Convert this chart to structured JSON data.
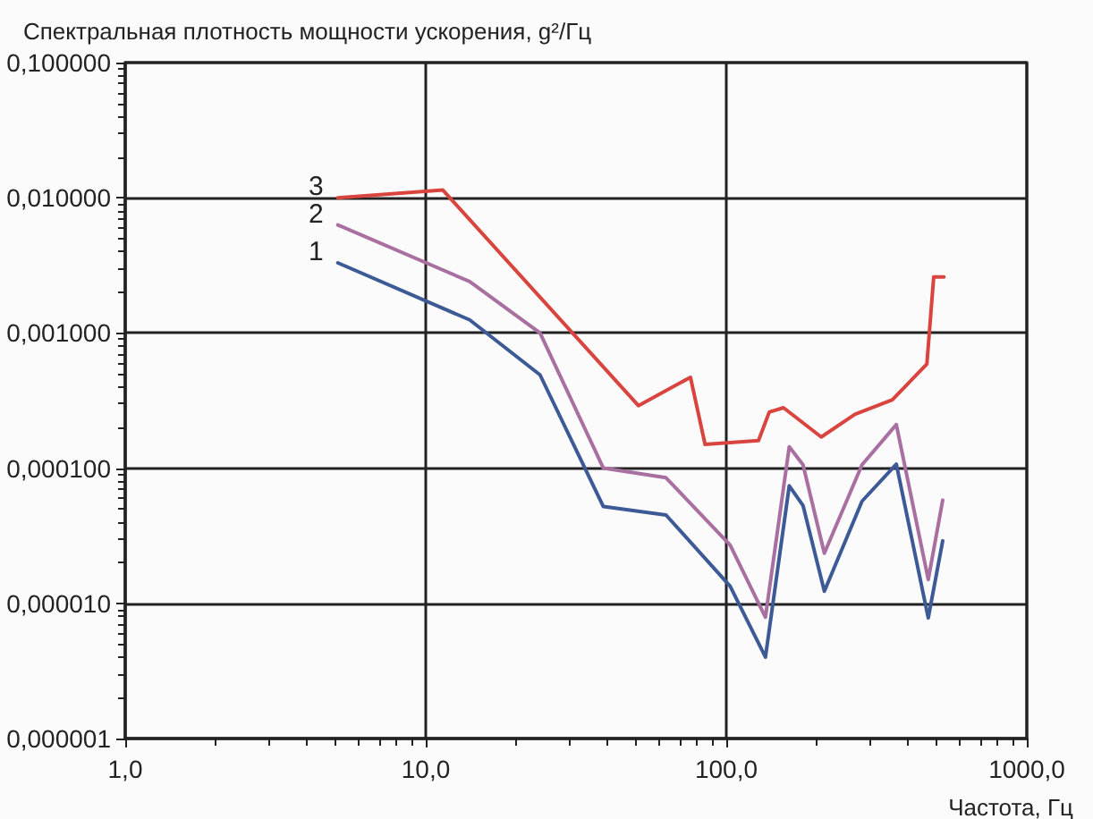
{
  "chart_data": {
    "type": "line",
    "ylabel": "Спектральная плотность мощности ускорения, g²/Гц",
    "xlabel": "Частота, Гц",
    "log": "xy",
    "grid": true,
    "legend": false,
    "marker": "none",
    "line_style": "solid",
    "xlim": [
      1,
      1000
    ],
    "ylim": [
      1e-06,
      0.1
    ],
    "xticks": [
      {
        "value": 1,
        "label": "1,0"
      },
      {
        "value": 10,
        "label": "10,0"
      },
      {
        "value": 100,
        "label": "100,0"
      },
      {
        "value": 1000,
        "label": "1000,0"
      }
    ],
    "yticks": [
      {
        "value": 1e-06,
        "label": "0,000001"
      },
      {
        "value": 1e-05,
        "label": "0,000010"
      },
      {
        "value": 0.0001,
        "label": "0,000100"
      },
      {
        "value": 0.001,
        "label": "0,001000"
      },
      {
        "value": 0.01,
        "label": "0,010000"
      },
      {
        "value": 0.1,
        "label": "0,100000"
      }
    ],
    "series": [
      {
        "name": "1",
        "color": "#3d5a96",
        "x": [
          5.1,
          14,
          24,
          39,
          63,
          103,
          135,
          162,
          180,
          212,
          283,
          368,
          470,
          525
        ],
        "values": [
          0.0033,
          0.00125,
          0.00049,
          5.2e-05,
          4.5e-05,
          1.34e-05,
          4e-06,
          7.4e-05,
          5.3e-05,
          1.23e-05,
          5.7e-05,
          0.000107,
          7.8e-06,
          2.9e-05
        ]
      },
      {
        "name": "2",
        "color": "#a86fa0",
        "x": [
          5.1,
          14,
          24,
          39,
          63,
          103,
          135,
          162,
          180,
          212,
          283,
          368,
          470,
          525
        ],
        "values": [
          0.0063,
          0.0024,
          0.001,
          0.0001,
          8.5e-05,
          2.7e-05,
          7.9e-06,
          0.000144,
          0.000106,
          2.35e-05,
          0.000106,
          0.00021,
          1.5e-05,
          5.8e-05
        ]
      },
      {
        "name": "3",
        "color": "#d9443f",
        "x": [
          5.1,
          11.4,
          51,
          76,
          85,
          128,
          139,
          155,
          207,
          268,
          357,
          465,
          490,
          530
        ],
        "values": [
          0.01,
          0.0114,
          0.00029,
          0.00047,
          0.00015,
          0.00016,
          0.00026,
          0.00028,
          0.00017,
          0.00025,
          0.00032,
          0.00059,
          0.0026,
          0.0026
        ]
      }
    ]
  }
}
